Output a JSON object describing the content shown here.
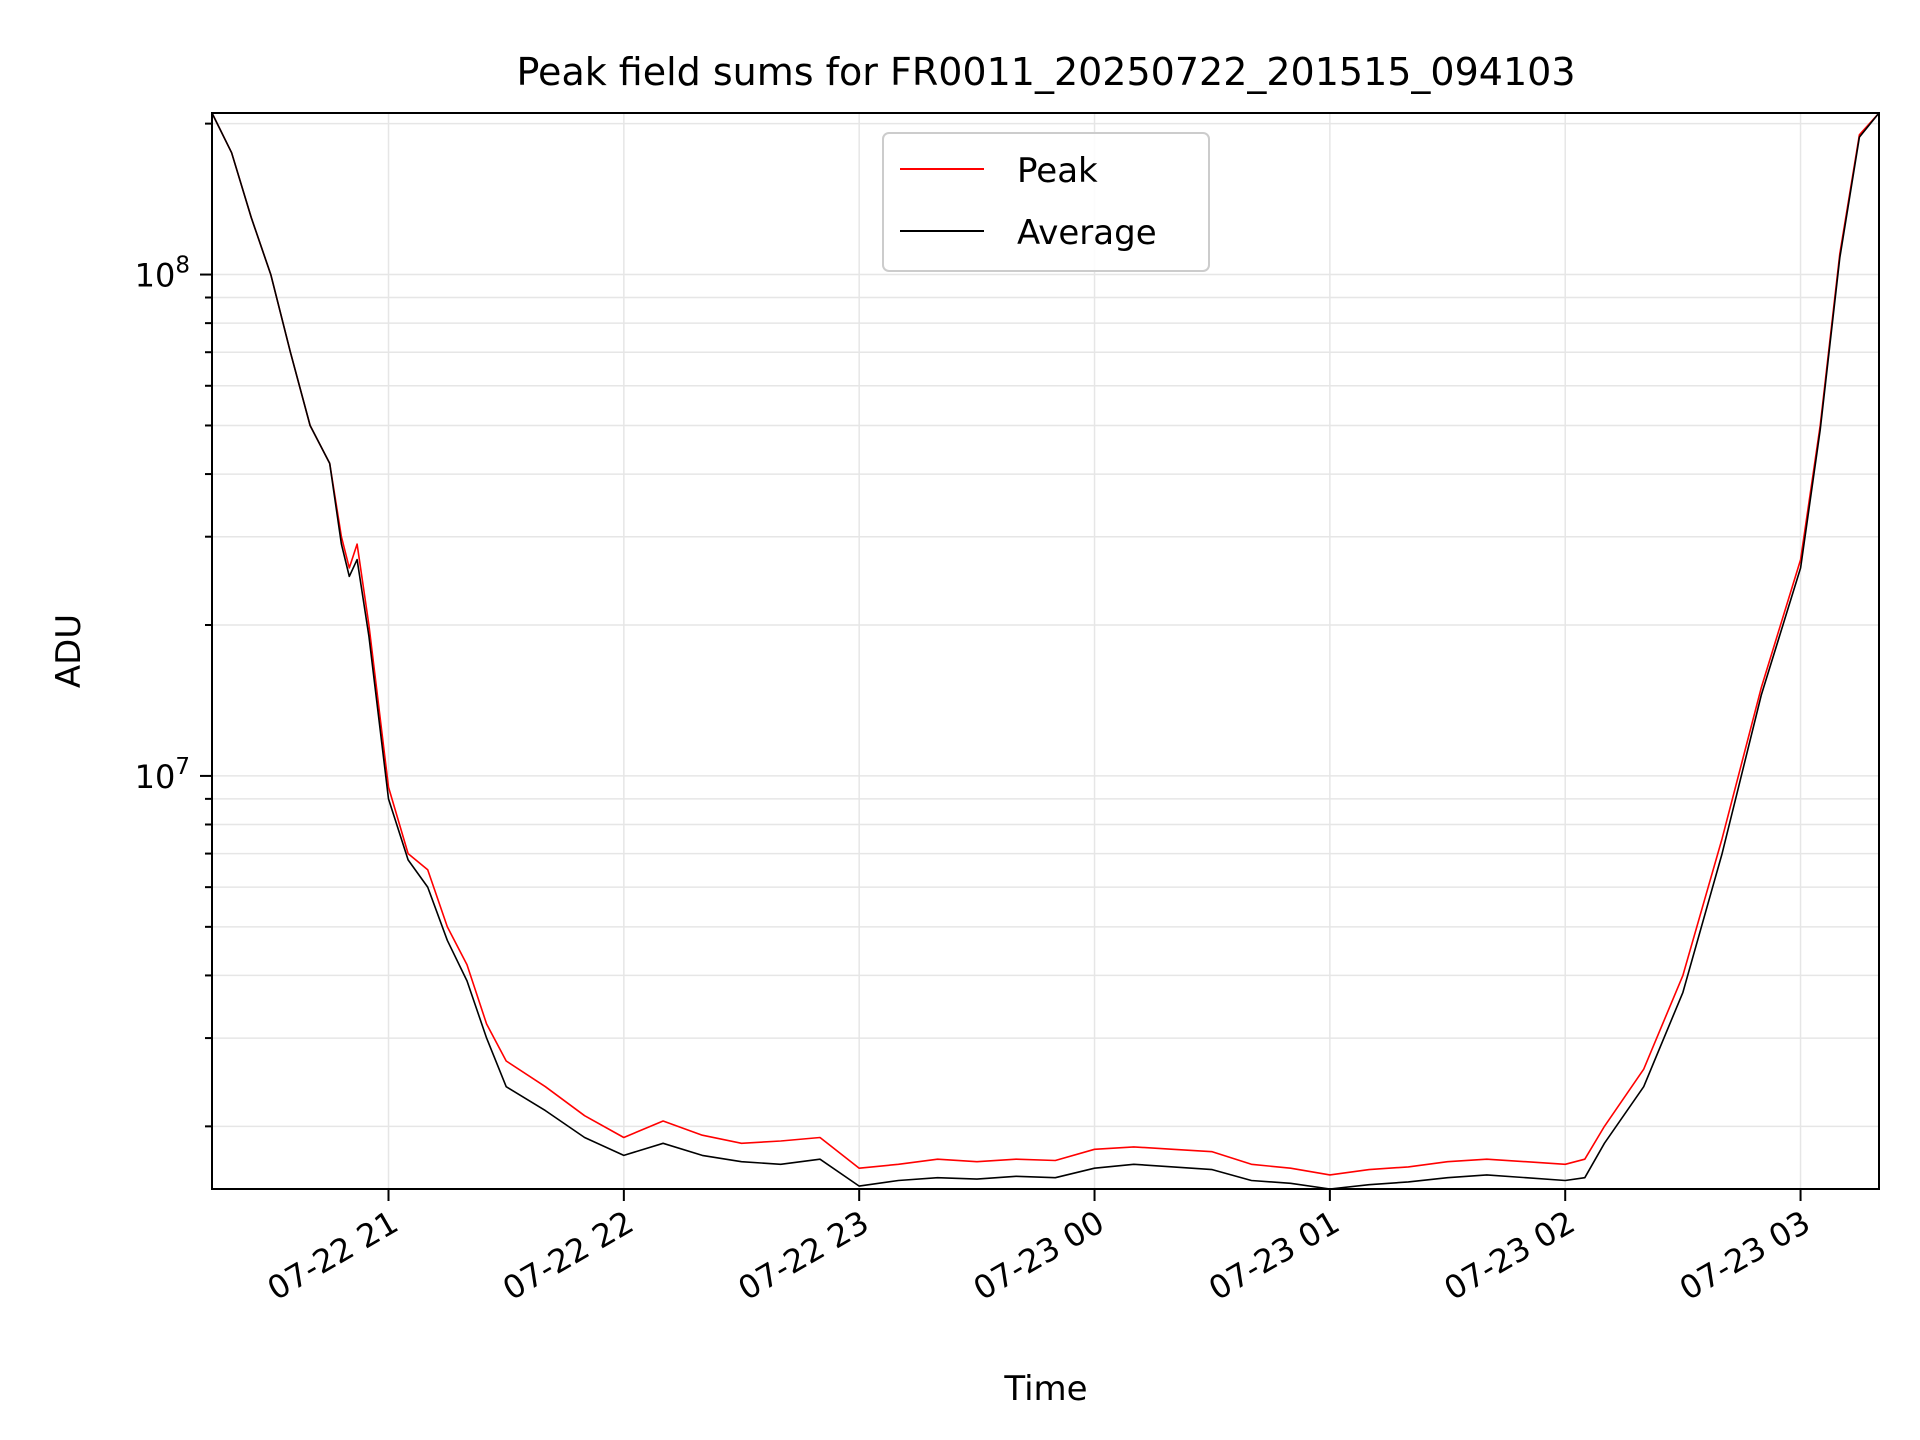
{
  "chart_data": {
    "type": "line",
    "title": "Peak field sums for FR0011_20250722_201515_094103",
    "xlabel": "Time",
    "ylabel": "ADU",
    "yscale": "log",
    "ylim": [
      1500000,
      210000000
    ],
    "xlim": [
      "2025-07-22 20:15",
      "2025-07-23 03:20"
    ],
    "grid": true,
    "legend_position": "top-center",
    "x_ticks": [
      "2025-07-22 21:00",
      "2025-07-22 22:00",
      "2025-07-22 23:00",
      "2025-07-23 00:00",
      "2025-07-23 01:00",
      "2025-07-23 02:00",
      "2025-07-23 03:00"
    ],
    "x_tick_labels": [
      "07-22 21",
      "07-22 22",
      "07-22 23",
      "07-23 00",
      "07-23 01",
      "07-23 02",
      "07-23 03"
    ],
    "y_major_ticks": [
      {
        "value": 10000000,
        "base": "10",
        "exp": "7"
      },
      {
        "value": 100000000,
        "base": "10",
        "exp": "8"
      }
    ],
    "series": [
      {
        "name": "Peak",
        "color": "#ff0000",
        "points": [
          [
            "2025-07-22 20:15",
            210000000
          ],
          [
            "2025-07-22 20:20",
            175000000
          ],
          [
            "2025-07-22 20:25",
            130000000
          ],
          [
            "2025-07-22 20:30",
            100000000
          ],
          [
            "2025-07-22 20:35",
            70000000
          ],
          [
            "2025-07-22 20:40",
            50000000
          ],
          [
            "2025-07-22 20:45",
            42000000
          ],
          [
            "2025-07-22 20:48",
            30000000
          ],
          [
            "2025-07-22 20:50",
            26000000
          ],
          [
            "2025-07-22 20:52",
            29000000
          ],
          [
            "2025-07-22 20:55",
            20000000
          ],
          [
            "2025-07-22 21:00",
            9500000
          ],
          [
            "2025-07-22 21:05",
            7000000
          ],
          [
            "2025-07-22 21:10",
            6500000
          ],
          [
            "2025-07-22 21:15",
            5000000
          ],
          [
            "2025-07-22 21:20",
            4200000
          ],
          [
            "2025-07-22 21:25",
            3200000
          ],
          [
            "2025-07-22 21:30",
            2700000
          ],
          [
            "2025-07-22 21:40",
            2400000
          ],
          [
            "2025-07-22 21:50",
            2100000
          ],
          [
            "2025-07-22 22:00",
            1900000
          ],
          [
            "2025-07-22 22:10",
            2050000
          ],
          [
            "2025-07-22 22:20",
            1920000
          ],
          [
            "2025-07-22 22:30",
            1850000
          ],
          [
            "2025-07-22 22:40",
            1870000
          ],
          [
            "2025-07-22 22:50",
            1900000
          ],
          [
            "2025-07-22 23:00",
            1650000
          ],
          [
            "2025-07-22 23:10",
            1680000
          ],
          [
            "2025-07-22 23:20",
            1720000
          ],
          [
            "2025-07-22 23:30",
            1700000
          ],
          [
            "2025-07-22 23:40",
            1720000
          ],
          [
            "2025-07-22 23:50",
            1710000
          ],
          [
            "2025-07-23 00:00",
            1800000
          ],
          [
            "2025-07-23 00:10",
            1820000
          ],
          [
            "2025-07-23 00:20",
            1800000
          ],
          [
            "2025-07-23 00:30",
            1780000
          ],
          [
            "2025-07-23 00:40",
            1680000
          ],
          [
            "2025-07-23 00:50",
            1650000
          ],
          [
            "2025-07-23 01:00",
            1600000
          ],
          [
            "2025-07-23 01:10",
            1640000
          ],
          [
            "2025-07-23 01:20",
            1660000
          ],
          [
            "2025-07-23 01:30",
            1700000
          ],
          [
            "2025-07-23 01:40",
            1720000
          ],
          [
            "2025-07-23 01:50",
            1700000
          ],
          [
            "2025-07-23 02:00",
            1680000
          ],
          [
            "2025-07-23 02:05",
            1720000
          ],
          [
            "2025-07-23 02:10",
            2000000
          ],
          [
            "2025-07-23 02:20",
            2600000
          ],
          [
            "2025-07-23 02:30",
            4000000
          ],
          [
            "2025-07-23 02:40",
            7500000
          ],
          [
            "2025-07-23 02:50",
            15000000
          ],
          [
            "2025-07-23 03:00",
            27000000
          ],
          [
            "2025-07-23 03:05",
            50000000
          ],
          [
            "2025-07-23 03:10",
            110000000
          ],
          [
            "2025-07-23 03:15",
            190000000
          ],
          [
            "2025-07-23 03:20",
            210000000
          ]
        ]
      },
      {
        "name": "Average",
        "color": "#000000",
        "points": [
          [
            "2025-07-22 20:15",
            210000000
          ],
          [
            "2025-07-22 20:20",
            175000000
          ],
          [
            "2025-07-22 20:25",
            130000000
          ],
          [
            "2025-07-22 20:30",
            100000000
          ],
          [
            "2025-07-22 20:35",
            70000000
          ],
          [
            "2025-07-22 20:40",
            50000000
          ],
          [
            "2025-07-22 20:45",
            42000000
          ],
          [
            "2025-07-22 20:48",
            29000000
          ],
          [
            "2025-07-22 20:50",
            25000000
          ],
          [
            "2025-07-22 20:52",
            27000000
          ],
          [
            "2025-07-22 20:55",
            19000000
          ],
          [
            "2025-07-22 21:00",
            9000000
          ],
          [
            "2025-07-22 21:05",
            6800000
          ],
          [
            "2025-07-22 21:10",
            6000000
          ],
          [
            "2025-07-22 21:15",
            4700000
          ],
          [
            "2025-07-22 21:20",
            3900000
          ],
          [
            "2025-07-22 21:25",
            3000000
          ],
          [
            "2025-07-22 21:30",
            2400000
          ],
          [
            "2025-07-22 21:40",
            2150000
          ],
          [
            "2025-07-22 21:50",
            1900000
          ],
          [
            "2025-07-22 22:00",
            1750000
          ],
          [
            "2025-07-22 22:10",
            1850000
          ],
          [
            "2025-07-22 22:20",
            1750000
          ],
          [
            "2025-07-22 22:30",
            1700000
          ],
          [
            "2025-07-22 22:40",
            1680000
          ],
          [
            "2025-07-22 22:50",
            1720000
          ],
          [
            "2025-07-22 23:00",
            1520000
          ],
          [
            "2025-07-22 23:10",
            1560000
          ],
          [
            "2025-07-22 23:20",
            1580000
          ],
          [
            "2025-07-22 23:30",
            1570000
          ],
          [
            "2025-07-22 23:40",
            1590000
          ],
          [
            "2025-07-22 23:50",
            1580000
          ],
          [
            "2025-07-23 00:00",
            1650000
          ],
          [
            "2025-07-23 00:10",
            1680000
          ],
          [
            "2025-07-23 00:20",
            1660000
          ],
          [
            "2025-07-23 00:30",
            1640000
          ],
          [
            "2025-07-23 00:40",
            1560000
          ],
          [
            "2025-07-23 00:50",
            1540000
          ],
          [
            "2025-07-23 01:00",
            1500000
          ],
          [
            "2025-07-23 01:10",
            1530000
          ],
          [
            "2025-07-23 01:20",
            1550000
          ],
          [
            "2025-07-23 01:30",
            1580000
          ],
          [
            "2025-07-23 01:40",
            1600000
          ],
          [
            "2025-07-23 01:50",
            1580000
          ],
          [
            "2025-07-23 02:00",
            1560000
          ],
          [
            "2025-07-23 02:05",
            1580000
          ],
          [
            "2025-07-23 02:10",
            1850000
          ],
          [
            "2025-07-23 02:20",
            2400000
          ],
          [
            "2025-07-23 02:30",
            3700000
          ],
          [
            "2025-07-23 02:40",
            7000000
          ],
          [
            "2025-07-23 02:50",
            14500000
          ],
          [
            "2025-07-23 03:00",
            26000000
          ],
          [
            "2025-07-23 03:05",
            49000000
          ],
          [
            "2025-07-23 03:10",
            108000000
          ],
          [
            "2025-07-23 03:15",
            188000000
          ],
          [
            "2025-07-23 03:20",
            210000000
          ]
        ]
      }
    ]
  }
}
